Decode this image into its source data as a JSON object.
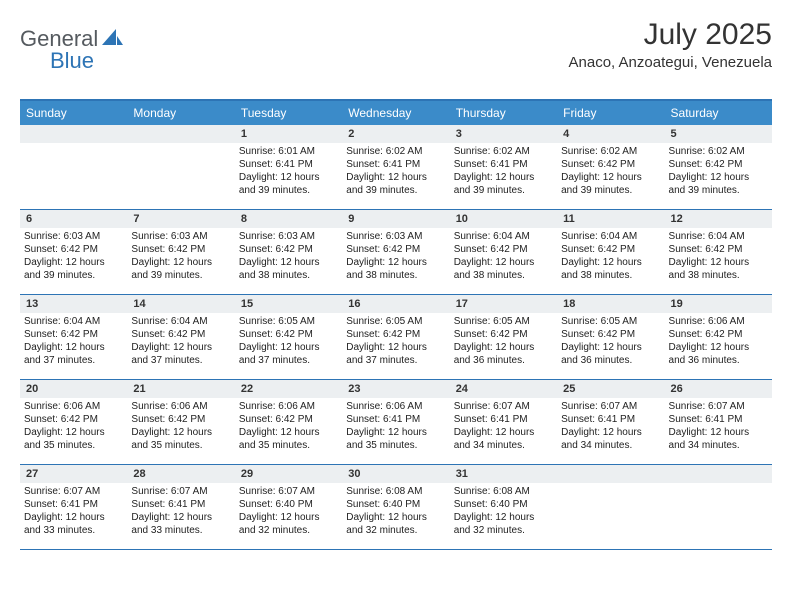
{
  "logo": {
    "general": "General",
    "blue": "Blue"
  },
  "title": "July 2025",
  "location": "Anaco, Anzoategui, Venezuela",
  "colors": {
    "header_bg": "#3b8bc9",
    "border": "#2d74b5",
    "daynum_bg": "#eceff1",
    "text": "#222222"
  },
  "weekdays": [
    "Sunday",
    "Monday",
    "Tuesday",
    "Wednesday",
    "Thursday",
    "Friday",
    "Saturday"
  ],
  "weeks": [
    [
      null,
      null,
      {
        "n": "1",
        "sr": "Sunrise: 6:01 AM",
        "ss": "Sunset: 6:41 PM",
        "d1": "Daylight: 12 hours",
        "d2": "and 39 minutes."
      },
      {
        "n": "2",
        "sr": "Sunrise: 6:02 AM",
        "ss": "Sunset: 6:41 PM",
        "d1": "Daylight: 12 hours",
        "d2": "and 39 minutes."
      },
      {
        "n": "3",
        "sr": "Sunrise: 6:02 AM",
        "ss": "Sunset: 6:41 PM",
        "d1": "Daylight: 12 hours",
        "d2": "and 39 minutes."
      },
      {
        "n": "4",
        "sr": "Sunrise: 6:02 AM",
        "ss": "Sunset: 6:42 PM",
        "d1": "Daylight: 12 hours",
        "d2": "and 39 minutes."
      },
      {
        "n": "5",
        "sr": "Sunrise: 6:02 AM",
        "ss": "Sunset: 6:42 PM",
        "d1": "Daylight: 12 hours",
        "d2": "and 39 minutes."
      }
    ],
    [
      {
        "n": "6",
        "sr": "Sunrise: 6:03 AM",
        "ss": "Sunset: 6:42 PM",
        "d1": "Daylight: 12 hours",
        "d2": "and 39 minutes."
      },
      {
        "n": "7",
        "sr": "Sunrise: 6:03 AM",
        "ss": "Sunset: 6:42 PM",
        "d1": "Daylight: 12 hours",
        "d2": "and 39 minutes."
      },
      {
        "n": "8",
        "sr": "Sunrise: 6:03 AM",
        "ss": "Sunset: 6:42 PM",
        "d1": "Daylight: 12 hours",
        "d2": "and 38 minutes."
      },
      {
        "n": "9",
        "sr": "Sunrise: 6:03 AM",
        "ss": "Sunset: 6:42 PM",
        "d1": "Daylight: 12 hours",
        "d2": "and 38 minutes."
      },
      {
        "n": "10",
        "sr": "Sunrise: 6:04 AM",
        "ss": "Sunset: 6:42 PM",
        "d1": "Daylight: 12 hours",
        "d2": "and 38 minutes."
      },
      {
        "n": "11",
        "sr": "Sunrise: 6:04 AM",
        "ss": "Sunset: 6:42 PM",
        "d1": "Daylight: 12 hours",
        "d2": "and 38 minutes."
      },
      {
        "n": "12",
        "sr": "Sunrise: 6:04 AM",
        "ss": "Sunset: 6:42 PM",
        "d1": "Daylight: 12 hours",
        "d2": "and 38 minutes."
      }
    ],
    [
      {
        "n": "13",
        "sr": "Sunrise: 6:04 AM",
        "ss": "Sunset: 6:42 PM",
        "d1": "Daylight: 12 hours",
        "d2": "and 37 minutes."
      },
      {
        "n": "14",
        "sr": "Sunrise: 6:04 AM",
        "ss": "Sunset: 6:42 PM",
        "d1": "Daylight: 12 hours",
        "d2": "and 37 minutes."
      },
      {
        "n": "15",
        "sr": "Sunrise: 6:05 AM",
        "ss": "Sunset: 6:42 PM",
        "d1": "Daylight: 12 hours",
        "d2": "and 37 minutes."
      },
      {
        "n": "16",
        "sr": "Sunrise: 6:05 AM",
        "ss": "Sunset: 6:42 PM",
        "d1": "Daylight: 12 hours",
        "d2": "and 37 minutes."
      },
      {
        "n": "17",
        "sr": "Sunrise: 6:05 AM",
        "ss": "Sunset: 6:42 PM",
        "d1": "Daylight: 12 hours",
        "d2": "and 36 minutes."
      },
      {
        "n": "18",
        "sr": "Sunrise: 6:05 AM",
        "ss": "Sunset: 6:42 PM",
        "d1": "Daylight: 12 hours",
        "d2": "and 36 minutes."
      },
      {
        "n": "19",
        "sr": "Sunrise: 6:06 AM",
        "ss": "Sunset: 6:42 PM",
        "d1": "Daylight: 12 hours",
        "d2": "and 36 minutes."
      }
    ],
    [
      {
        "n": "20",
        "sr": "Sunrise: 6:06 AM",
        "ss": "Sunset: 6:42 PM",
        "d1": "Daylight: 12 hours",
        "d2": "and 35 minutes."
      },
      {
        "n": "21",
        "sr": "Sunrise: 6:06 AM",
        "ss": "Sunset: 6:42 PM",
        "d1": "Daylight: 12 hours",
        "d2": "and 35 minutes."
      },
      {
        "n": "22",
        "sr": "Sunrise: 6:06 AM",
        "ss": "Sunset: 6:42 PM",
        "d1": "Daylight: 12 hours",
        "d2": "and 35 minutes."
      },
      {
        "n": "23",
        "sr": "Sunrise: 6:06 AM",
        "ss": "Sunset: 6:41 PM",
        "d1": "Daylight: 12 hours",
        "d2": "and 35 minutes."
      },
      {
        "n": "24",
        "sr": "Sunrise: 6:07 AM",
        "ss": "Sunset: 6:41 PM",
        "d1": "Daylight: 12 hours",
        "d2": "and 34 minutes."
      },
      {
        "n": "25",
        "sr": "Sunrise: 6:07 AM",
        "ss": "Sunset: 6:41 PM",
        "d1": "Daylight: 12 hours",
        "d2": "and 34 minutes."
      },
      {
        "n": "26",
        "sr": "Sunrise: 6:07 AM",
        "ss": "Sunset: 6:41 PM",
        "d1": "Daylight: 12 hours",
        "d2": "and 34 minutes."
      }
    ],
    [
      {
        "n": "27",
        "sr": "Sunrise: 6:07 AM",
        "ss": "Sunset: 6:41 PM",
        "d1": "Daylight: 12 hours",
        "d2": "and 33 minutes."
      },
      {
        "n": "28",
        "sr": "Sunrise: 6:07 AM",
        "ss": "Sunset: 6:41 PM",
        "d1": "Daylight: 12 hours",
        "d2": "and 33 minutes."
      },
      {
        "n": "29",
        "sr": "Sunrise: 6:07 AM",
        "ss": "Sunset: 6:40 PM",
        "d1": "Daylight: 12 hours",
        "d2": "and 32 minutes."
      },
      {
        "n": "30",
        "sr": "Sunrise: 6:08 AM",
        "ss": "Sunset: 6:40 PM",
        "d1": "Daylight: 12 hours",
        "d2": "and 32 minutes."
      },
      {
        "n": "31",
        "sr": "Sunrise: 6:08 AM",
        "ss": "Sunset: 6:40 PM",
        "d1": "Daylight: 12 hours",
        "d2": "and 32 minutes."
      },
      null,
      null
    ]
  ]
}
